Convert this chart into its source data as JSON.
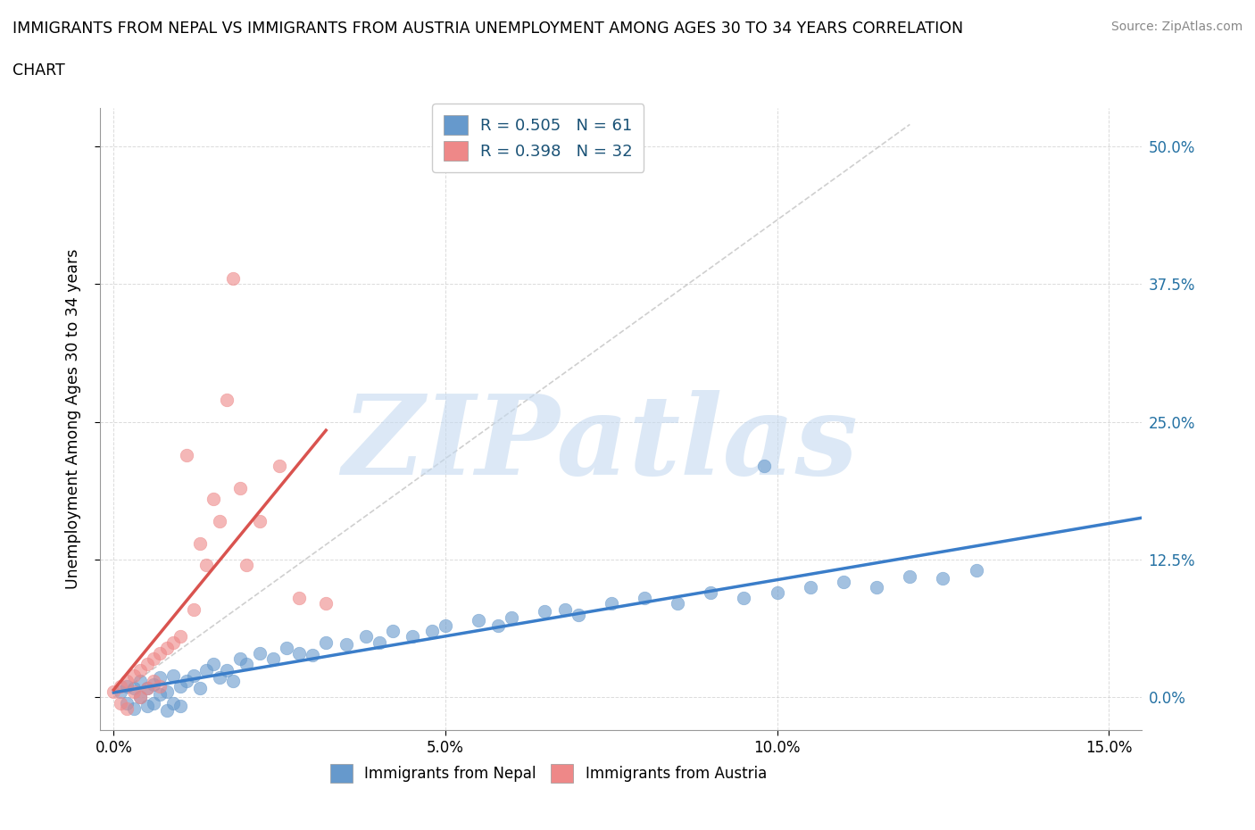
{
  "title_line1": "IMMIGRANTS FROM NEPAL VS IMMIGRANTS FROM AUSTRIA UNEMPLOYMENT AMONG AGES 30 TO 34 YEARS CORRELATION",
  "title_line2": "CHART",
  "source": "Source: ZipAtlas.com",
  "ylabel": "Unemployment Among Ages 30 to 34 years",
  "xlim": [
    -0.002,
    0.155
  ],
  "ylim": [
    -0.03,
    0.535
  ],
  "ytick_vals": [
    0.0,
    0.125,
    0.25,
    0.375,
    0.5
  ],
  "ytick_labels": [
    "0.0%",
    "12.5%",
    "25.0%",
    "37.5%",
    "50.0%"
  ],
  "xtick_vals": [
    0.0,
    0.05,
    0.1,
    0.15
  ],
  "xtick_labels": [
    "0.0%",
    "5.0%",
    "10.0%",
    "15.0%"
  ],
  "nepal_color": "#6699cc",
  "austria_color": "#ee8888",
  "nepal_R": "0.505",
  "nepal_N": "61",
  "austria_R": "0.398",
  "austria_N": "32",
  "watermark_text": "ZIPatlas",
  "watermark_color": "#c5daf0",
  "grid_color": "#cccccc",
  "legend_R_color": "#1a5276",
  "right_label_color": "#2471a3",
  "nepal_scatter_x": [
    0.001,
    0.002,
    0.002,
    0.003,
    0.003,
    0.004,
    0.004,
    0.005,
    0.005,
    0.006,
    0.006,
    0.007,
    0.007,
    0.008,
    0.008,
    0.009,
    0.009,
    0.01,
    0.01,
    0.011,
    0.012,
    0.013,
    0.014,
    0.015,
    0.016,
    0.017,
    0.018,
    0.019,
    0.02,
    0.022,
    0.024,
    0.026,
    0.028,
    0.03,
    0.032,
    0.035,
    0.038,
    0.04,
    0.042,
    0.045,
    0.048,
    0.05,
    0.055,
    0.058,
    0.06,
    0.065,
    0.068,
    0.07,
    0.075,
    0.08,
    0.085,
    0.09,
    0.095,
    0.1,
    0.105,
    0.11,
    0.115,
    0.12,
    0.125,
    0.13,
    0.098
  ],
  "nepal_scatter_y": [
    0.005,
    0.01,
    -0.005,
    0.008,
    -0.01,
    0.015,
    0.0,
    0.008,
    -0.008,
    0.012,
    -0.005,
    0.018,
    0.003,
    0.005,
    -0.012,
    0.02,
    -0.005,
    0.01,
    -0.008,
    0.015,
    0.02,
    0.008,
    0.025,
    0.03,
    0.018,
    0.025,
    0.015,
    0.035,
    0.03,
    0.04,
    0.035,
    0.045,
    0.04,
    0.038,
    0.05,
    0.048,
    0.055,
    0.05,
    0.06,
    0.055,
    0.06,
    0.065,
    0.07,
    0.065,
    0.072,
    0.078,
    0.08,
    0.075,
    0.085,
    0.09,
    0.085,
    0.095,
    0.09,
    0.095,
    0.1,
    0.105,
    0.1,
    0.11,
    0.108,
    0.115,
    0.21
  ],
  "austria_scatter_x": [
    0.0,
    0.001,
    0.001,
    0.002,
    0.002,
    0.003,
    0.003,
    0.004,
    0.004,
    0.005,
    0.005,
    0.006,
    0.006,
    0.007,
    0.007,
    0.008,
    0.009,
    0.01,
    0.011,
    0.012,
    0.013,
    0.014,
    0.015,
    0.016,
    0.017,
    0.018,
    0.019,
    0.02,
    0.022,
    0.025,
    0.028,
    0.032
  ],
  "austria_scatter_y": [
    0.005,
    0.01,
    -0.005,
    0.015,
    -0.01,
    0.02,
    0.005,
    0.025,
    0.0,
    0.03,
    0.008,
    0.035,
    0.015,
    0.04,
    0.01,
    0.045,
    0.05,
    0.055,
    0.22,
    0.08,
    0.14,
    0.12,
    0.18,
    0.16,
    0.27,
    0.38,
    0.19,
    0.12,
    0.16,
    0.21,
    0.09,
    0.085
  ]
}
